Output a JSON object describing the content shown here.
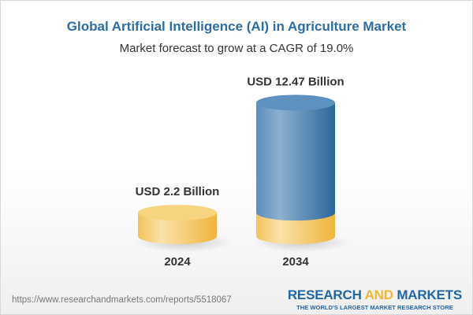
{
  "title": "Global Artificial Intelligence (AI) in Agriculture Market",
  "subtitle": "Market forecast to grow at a CAGR of 19.0%",
  "chart_data": {
    "type": "bar",
    "style": "3d-cylinder",
    "categories": [
      "2024",
      "2034"
    ],
    "values": [
      2.2,
      12.47
    ],
    "data_labels": [
      "USD 2.2 Billion",
      "USD 12.47 Billion"
    ],
    "unit": "USD Billion",
    "colors": {
      "base": "#f3c45e",
      "growth": "#4f86b8"
    },
    "grid": false
  },
  "footer": {
    "url": "https://www.researchandmarkets.com/reports/5518067",
    "logo_word1": "RESEARCH",
    "logo_word2": "AND",
    "logo_word3": "MARKETS",
    "logo_tagline": "THE WORLD'S LARGEST MARKET RESEARCH STORE"
  }
}
